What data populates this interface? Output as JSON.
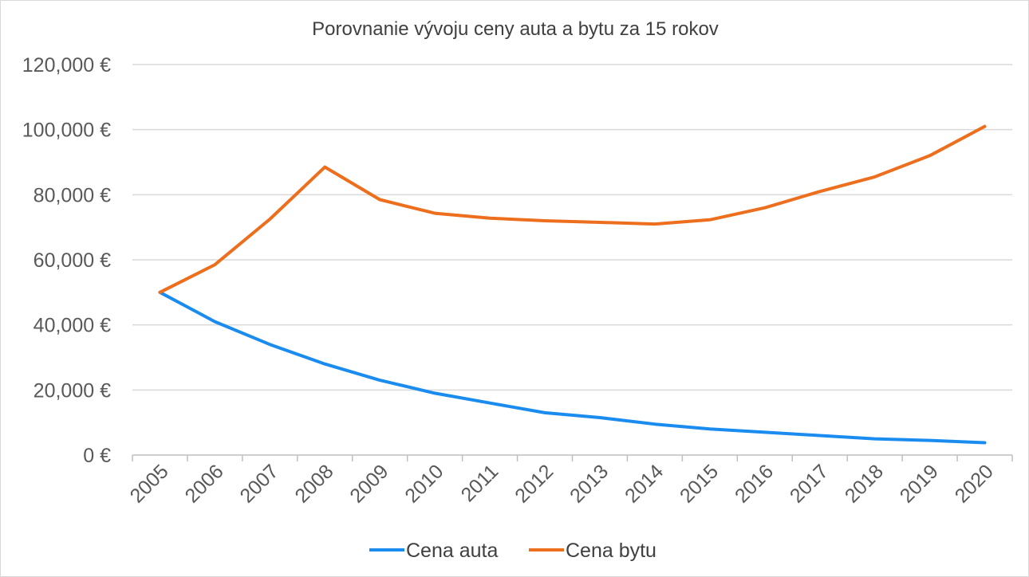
{
  "chart_data": {
    "type": "line",
    "title": "Porovnanie vývoju ceny auta a bytu za 15 rokov",
    "xlabel": "",
    "ylabel": "",
    "categories": [
      "2005",
      "2006",
      "2007",
      "2008",
      "2009",
      "2010",
      "2011",
      "2012",
      "2013",
      "2014",
      "2015",
      "2016",
      "2017",
      "2018",
      "2019",
      "2020"
    ],
    "y_tick_labels": [
      "0 €",
      "20,000 €",
      "40,000 €",
      "60,000 €",
      "80,000 €",
      "100,000 €",
      "120,000 €"
    ],
    "ylim": [
      0,
      120000
    ],
    "grid": true,
    "legend_position": "bottom",
    "series": [
      {
        "name": "Cena auta",
        "color": "#1a8cf0",
        "values": [
          50000,
          41000,
          34000,
          28000,
          23000,
          19000,
          16000,
          13000,
          11500,
          9500,
          8000,
          7000,
          6000,
          5000,
          4500,
          3800
        ]
      },
      {
        "name": "Cena bytu",
        "color": "#ed6e1c",
        "values": [
          50000,
          58500,
          72500,
          88500,
          78500,
          74300,
          72800,
          72000,
          71500,
          71000,
          72300,
          76000,
          81000,
          85500,
          92000,
          101000
        ]
      }
    ]
  }
}
